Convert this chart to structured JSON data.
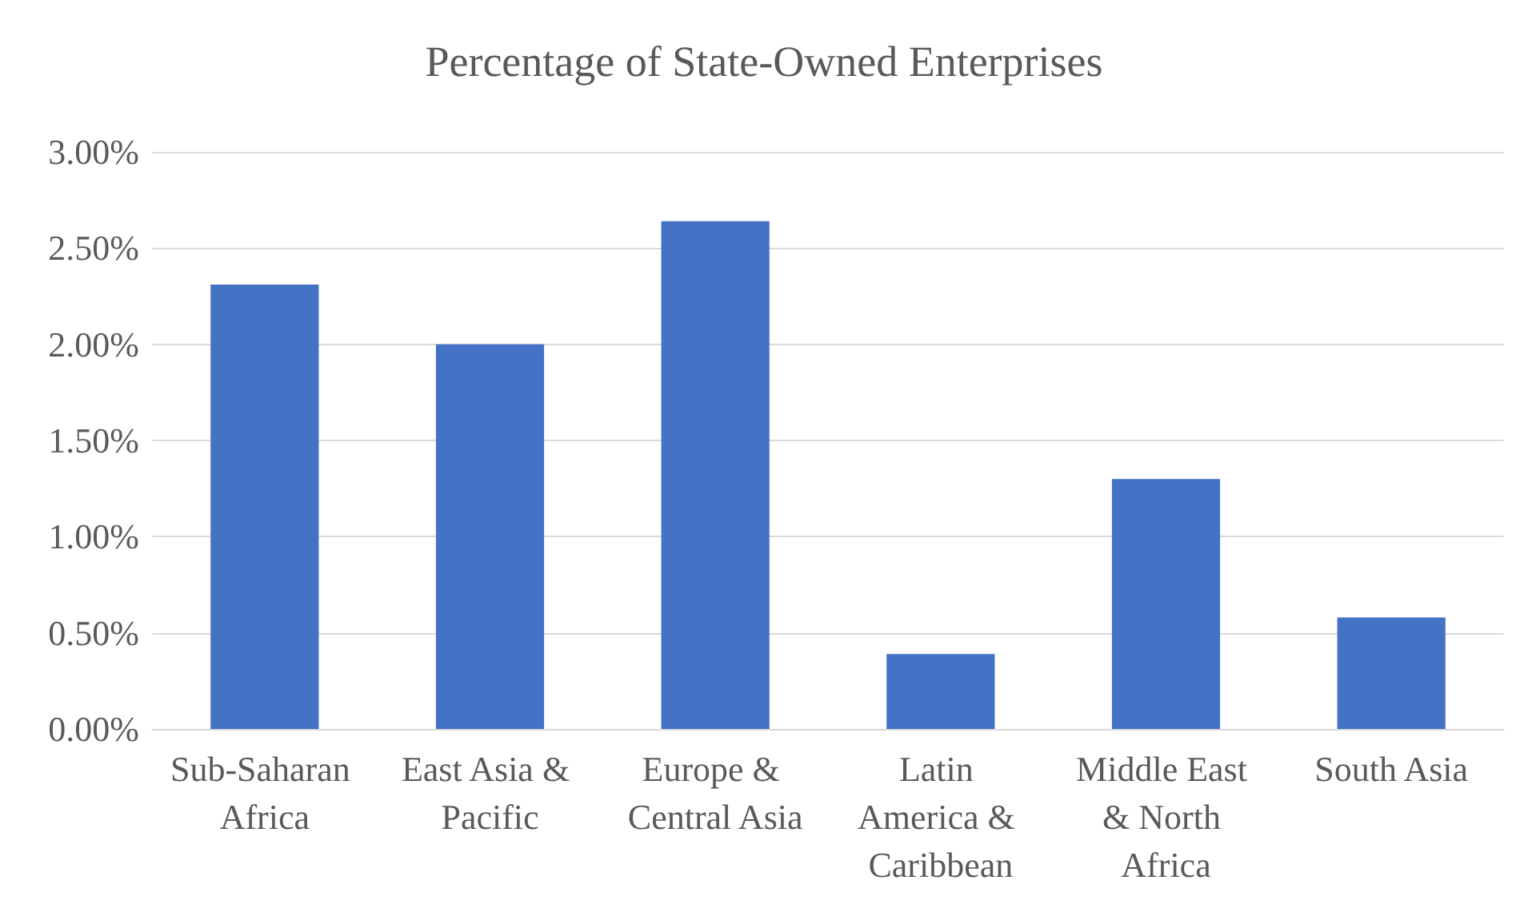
{
  "chart_data": {
    "type": "bar",
    "title": "Percentage of State-Owned Enterprises",
    "categories": [
      "Sub-Saharan Africa",
      "East Asia & Pacific",
      "Europe & Central Asia",
      "Latin America & Caribbean",
      "Middle East & North Africa",
      "South Asia"
    ],
    "values": [
      2.31,
      2.0,
      2.64,
      0.39,
      1.3,
      0.58
    ],
    "color": "#4472c4",
    "ylim": [
      0,
      3
    ],
    "yticks": [
      {
        "value": 0,
        "label": "0.00%"
      },
      {
        "value": 0.5,
        "label": "0.50%"
      },
      {
        "value": 1,
        "label": "1.00%"
      },
      {
        "value": 1.5,
        "label": "1.50%"
      },
      {
        "value": 2,
        "label": "2.00%"
      },
      {
        "value": 2.5,
        "label": "2.50%"
      },
      {
        "value": 3,
        "label": "3.00%"
      }
    ],
    "grid": "y"
  }
}
